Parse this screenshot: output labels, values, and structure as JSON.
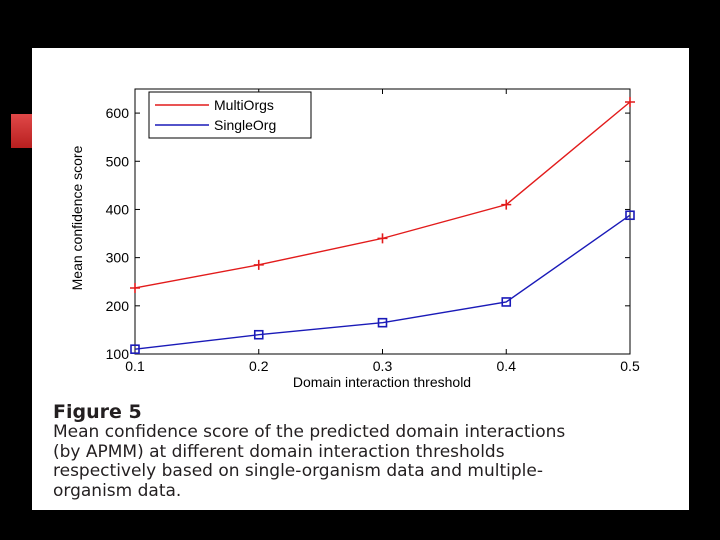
{
  "chart_data": {
    "type": "line",
    "x": [
      0.1,
      0.2,
      0.3,
      0.4,
      0.5
    ],
    "xticks": [
      "0.1",
      "0.2",
      "0.3",
      "0.4",
      "0.5"
    ],
    "yticks": [
      "100",
      "200",
      "300",
      "400",
      "500",
      "600"
    ],
    "xlabel": "Domain interaction threshold",
    "ylabel": "Mean confidence score",
    "xlim": [
      0.1,
      0.5
    ],
    "ylim": [
      100,
      650
    ],
    "legend_position": "top-left",
    "grid": false,
    "series": [
      {
        "name": "MultiOrgs",
        "values": [
          237,
          285,
          340,
          410,
          623
        ],
        "color": "#e21b1b",
        "marker": "plus"
      },
      {
        "name": "SingleOrg",
        "values": [
          110,
          140,
          165,
          208,
          388
        ],
        "color": "#1a1ab8",
        "marker": "square"
      }
    ]
  },
  "caption": {
    "title": "Figure 5",
    "lines": [
      "Mean confidence score of the predicted domain interactions",
      "(by APMM) at different domain interaction thresholds",
      "respectively based on single-organism data and multiple-",
      "organism data."
    ]
  },
  "colors": {
    "background": "#000000",
    "slide": "#ffffff",
    "accent": "#c62828"
  }
}
